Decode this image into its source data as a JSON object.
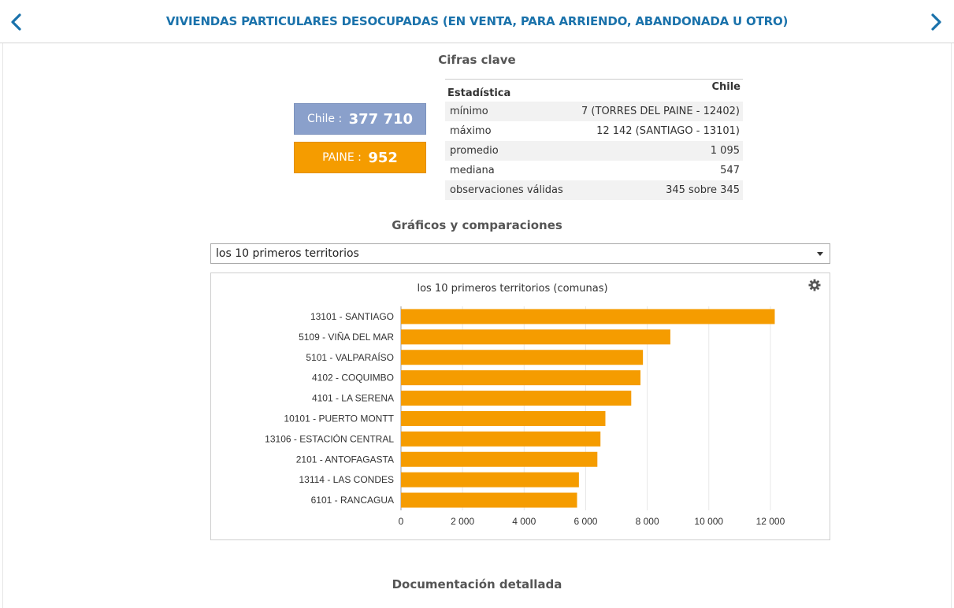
{
  "header": {
    "title": "VIVIENDAS PARTICULARES DESOCUPADAS (EN VENTA, PARA ARRIENDO, ABANDONADA U OTRO)",
    "prev_icon": "chevron-left-icon",
    "next_icon": "chevron-right-icon"
  },
  "key_figures": {
    "title": "Cifras clave",
    "chile": {
      "label": "Chile",
      "sep": " : ",
      "value": "377 710",
      "color": "#8aa0cb"
    },
    "paine": {
      "label": "PAINE",
      "sep": " : ",
      "value": "952",
      "color": "#f59c00"
    }
  },
  "stats_table": {
    "headers": [
      "Estadística",
      "Chile"
    ],
    "rows": [
      {
        "label": "mínimo",
        "value": "7 (TORRES DEL PAINE - 12402)"
      },
      {
        "label": "máximo",
        "value": "12 142 (SANTIAGO - 13101)"
      },
      {
        "label": "promedio",
        "value": "1 095"
      },
      {
        "label": "mediana",
        "value": "547"
      },
      {
        "label": "observaciones válidas",
        "value": "345 sobre 345"
      }
    ]
  },
  "charts_section": {
    "title": "Gráficos y comparaciones",
    "select_value": "los 10 primeros territorios",
    "settings_icon": "gear-icon"
  },
  "chart_data": {
    "type": "bar",
    "orientation": "horizontal",
    "title": "los 10 primeros territorios (comunas)",
    "categories": [
      "13101 - SANTIAGO",
      "5109 - VIÑA DEL MAR",
      "5101 - VALPARAÍSO",
      "4102 - COQUIMBO",
      "4101 - LA SERENA",
      "10101 - PUERTO MONTT",
      "13106 - ESTACIÓN CENTRAL",
      "2101 - ANTOFAGASTA",
      "13114 - LAS CONDES",
      "6101 - RANCAGUA"
    ],
    "values": [
      12142,
      8750,
      7860,
      7780,
      7480,
      6640,
      6480,
      6380,
      5780,
      5720
    ],
    "xlim": [
      0,
      13000
    ],
    "xticks": [
      0,
      2000,
      4000,
      6000,
      8000,
      10000,
      12000
    ],
    "xtick_labels": [
      "0",
      "2 000",
      "4 000",
      "6 000",
      "8 000",
      "10 000",
      "12 000"
    ],
    "bar_color": "#f59c00",
    "grid": true
  },
  "documentation": {
    "title": "Documentación detallada"
  }
}
